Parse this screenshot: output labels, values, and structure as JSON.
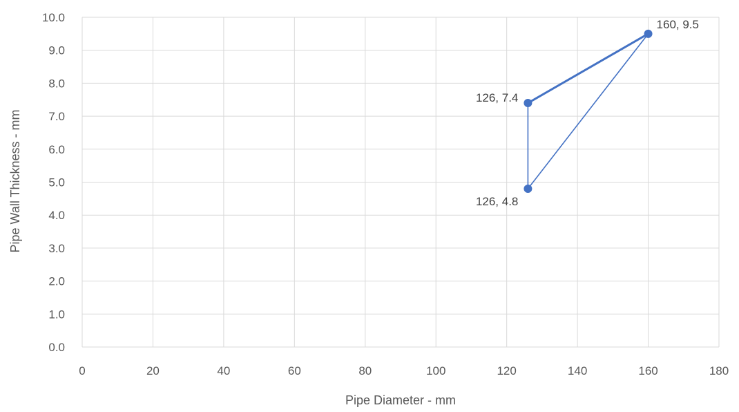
{
  "chart_data": {
    "type": "scatter",
    "xlabel": "Pipe Diameter - mm",
    "ylabel": "Pipe Wall Thickness - mm",
    "xlim": [
      0,
      180
    ],
    "ylim": [
      0,
      10
    ],
    "x_ticks": [
      "0",
      "20",
      "40",
      "60",
      "80",
      "100",
      "120",
      "140",
      "160",
      "180"
    ],
    "y_ticks": [
      "0.0",
      "1.0",
      "2.0",
      "3.0",
      "4.0",
      "5.0",
      "6.0",
      "7.0",
      "8.0",
      "9.0",
      "10.0"
    ],
    "grid": true,
    "series": [
      {
        "color": "#4472c4",
        "points": [
          {
            "x": 126,
            "y": 4.8,
            "label": "126, 4.8"
          },
          {
            "x": 160,
            "y": 9.5,
            "label": "160, 9.5"
          },
          {
            "x": 126,
            "y": 7.4,
            "label": "126, 7.4"
          },
          {
            "x": 160,
            "y": 9.5,
            "label": "160, 9.5"
          }
        ]
      }
    ]
  }
}
